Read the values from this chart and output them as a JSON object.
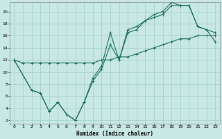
{
  "title": "",
  "xlabel": "Humidex (Indice chaleur)",
  "bg_color": "#c8e8e4",
  "grid_color": "#a0cccc",
  "line_color": "#1a6b5a",
  "xlim": [
    -0.5,
    23.5
  ],
  "ylim": [
    1.5,
    21.5
  ],
  "xticks": [
    0,
    1,
    2,
    3,
    4,
    5,
    6,
    7,
    8,
    9,
    10,
    11,
    12,
    13,
    14,
    15,
    16,
    17,
    18,
    19,
    20,
    21,
    22,
    23
  ],
  "yticks": [
    2,
    4,
    6,
    8,
    10,
    12,
    14,
    16,
    18,
    20
  ],
  "line1_x": [
    0,
    1,
    2,
    3,
    4,
    5,
    6,
    7,
    8,
    9,
    10,
    11,
    12,
    13,
    14,
    15,
    16,
    17,
    18,
    19,
    20,
    21,
    22,
    23
  ],
  "line1_y": [
    12,
    11.5,
    11.5,
    11.5,
    11.5,
    11.5,
    11.5,
    11.5,
    11.5,
    11.5,
    12,
    12,
    12.5,
    12.5,
    13,
    13.5,
    14,
    14.5,
    15,
    15.5,
    15.5,
    16,
    16,
    16
  ],
  "line2_x": [
    0,
    2,
    3,
    4,
    5,
    6,
    7,
    8,
    9,
    10,
    11,
    12,
    13,
    14,
    15,
    16,
    17,
    18,
    19,
    20,
    21,
    22,
    23
  ],
  "line2_y": [
    12,
    7,
    6.5,
    3.5,
    5,
    3,
    2,
    5,
    9,
    11,
    16.5,
    12,
    17,
    17.5,
    18.5,
    19,
    19.5,
    21,
    21,
    21,
    17.5,
    17,
    16.5
  ],
  "line3_x": [
    0,
    2,
    3,
    4,
    5,
    6,
    7,
    8,
    9,
    10,
    11,
    12,
    13,
    14,
    15,
    16,
    17,
    18,
    19,
    20,
    21,
    22,
    23
  ],
  "line3_y": [
    12,
    7,
    6.5,
    3.5,
    5,
    3,
    2,
    5,
    8.5,
    10.5,
    14.5,
    12,
    16.5,
    17,
    18.5,
    19.5,
    20,
    21.5,
    21,
    21,
    17.5,
    17,
    15
  ]
}
